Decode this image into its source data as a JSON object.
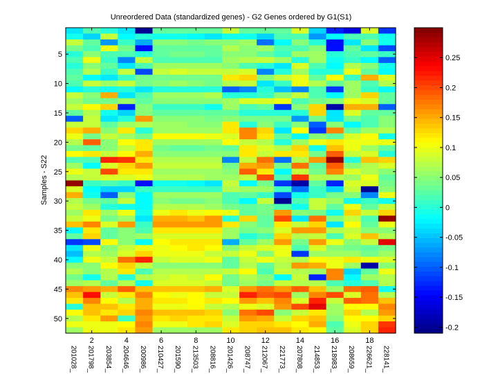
{
  "chart_data": {
    "type": "heatmap",
    "title": "Unreordered Data (standardized genes) - G2 Genes ordered by G1(S1)",
    "xlabel": "",
    "ylabel": "Samples - S22",
    "x_ticks": [
      2,
      4,
      6,
      8,
      10,
      12,
      14,
      16,
      18
    ],
    "y_ticks": [
      5,
      10,
      15,
      20,
      25,
      30,
      35,
      40,
      45,
      50
    ],
    "column_labels": [
      "201028_",
      "201798_",
      "203854_",
      "204646_",
      "200986_",
      "210427_",
      "201590_",
      "213503_",
      "208816_",
      "201426_",
      "208747_",
      "212067_",
      "221773_",
      "207808_",
      "214853_",
      "218983_",
      "208659_",
      "226621_",
      "228141_"
    ],
    "colorbar": {
      "colormap": "jet",
      "clim": [
        -0.21,
        0.3
      ],
      "ticks": [
        -0.2,
        -0.15,
        -0.1,
        -0.05,
        0,
        0.05,
        0.1,
        0.15,
        0.2,
        0.25
      ],
      "tick_labels": [
        "-0.2",
        "-0.15",
        "-0.1",
        "-0.05",
        "0",
        "0.05",
        "0.1",
        "0.15",
        "0.2",
        "0.25"
      ]
    },
    "n_rows": 52,
    "n_cols": 19,
    "values": [
      [
        -0.03,
        0.02,
        0.0,
        -0.03,
        -0.2,
        0.03,
        0.03,
        0.03,
        0.03,
        0.08,
        0.03,
        0.03,
        0.03,
        0.09,
        -0.04,
        -0.13,
        -0.16,
        0.09,
        -0.12
      ],
      [
        -0.01,
        -0.04,
        0.08,
        -0.02,
        0.0,
        -0.01,
        -0.01,
        -0.02,
        -0.03,
        -0.01,
        -0.01,
        -0.04,
        0.02,
        0.02,
        -0.07,
        -0.02,
        0.02,
        0.02,
        -0.01
      ],
      [
        0.08,
        0.03,
        -0.07,
        0.01,
        -0.06,
        0.05,
        0.05,
        0.04,
        0.05,
        0.05,
        0.06,
        -0.09,
        -0.02,
        0.05,
        0.0,
        -0.14,
        -0.03,
        0.05,
        -0.01
      ],
      [
        0.04,
        0.02,
        0.1,
        0.04,
        -0.14,
        0.03,
        0.03,
        0.03,
        0.03,
        0.07,
        0.05,
        0.06,
        0.02,
        0.02,
        0.05,
        -0.14,
        0.03,
        -0.03,
        -0.11
      ],
      [
        0.0,
        0.05,
        0.02,
        0.02,
        0.0,
        0.03,
        0.04,
        0.04,
        0.03,
        0.05,
        0.05,
        0.03,
        0.01,
        0.06,
        0.06,
        0.0,
        0.02,
        0.03,
        0.01
      ],
      [
        0.02,
        0.1,
        0.01,
        -0.08,
        0.08,
        0.02,
        0.02,
        0.02,
        0.02,
        0.06,
        0.07,
        0.08,
        0.06,
        0.0,
        0.06,
        -0.01,
        0.01,
        -0.02,
        -0.1
      ],
      [
        0.0,
        0.05,
        0.03,
        -0.03,
        0.02,
        0.06,
        0.06,
        0.06,
        0.06,
        0.05,
        0.02,
        0.0,
        -0.03,
        0.09,
        0.02,
        -0.02,
        0.07,
        0.05,
        -0.01
      ],
      [
        0.02,
        0.07,
        0.01,
        0.08,
        -0.11,
        0.08,
        0.09,
        0.08,
        0.08,
        0.08,
        0.09,
        -0.08,
        0.0,
        0.06,
        0.0,
        0.0,
        0.1,
        0.03,
        -0.02
      ],
      [
        0.03,
        -0.02,
        -0.03,
        0.01,
        0.04,
        0.04,
        0.04,
        0.04,
        0.04,
        0.12,
        0.13,
        0.05,
        0.08,
        0.1,
        0.03,
        0.11,
        0.01,
        0.15,
        0.09
      ],
      [
        0.02,
        0.08,
        0.06,
        0.08,
        0.04,
        0.05,
        0.06,
        0.05,
        0.04,
        0.07,
        0.08,
        -0.03,
        0.01,
        0.1,
        0.07,
        0.03,
        0.06,
        0.02,
        0.07
      ],
      [
        -0.02,
        0.0,
        -0.01,
        0.0,
        -0.03,
        0.0,
        0.0,
        0.0,
        0.0,
        -0.1,
        -0.08,
        0.0,
        -0.05,
        -0.08,
        0.02,
        -0.12,
        0.06,
        0.01,
        -0.02
      ],
      [
        0.08,
        0.05,
        0.15,
        -0.03,
        0.02,
        0.06,
        0.06,
        0.06,
        0.07,
        0.0,
        0.0,
        0.01,
        0.05,
        0.08,
        0.02,
        -0.02,
        0.06,
        0.13,
        0.03
      ],
      [
        0.06,
        0.04,
        0.04,
        0.06,
        0.03,
        0.05,
        0.05,
        0.05,
        0.05,
        0.06,
        0.09,
        0.09,
        0.1,
        0.02,
        0.04,
        0.05,
        0.1,
        0.09,
        0.03
      ],
      [
        0.08,
        0.11,
        0.13,
        -0.13,
        0.05,
        0.01,
        0.01,
        0.01,
        -0.01,
        0.06,
        0.02,
        0.03,
        -0.12,
        0.05,
        0.13,
        -0.19,
        0.15,
        0.15,
        -0.1
      ],
      [
        0.03,
        0.07,
        -0.01,
        -0.04,
        0.05,
        0.03,
        0.03,
        0.03,
        0.03,
        0.03,
        0.0,
        0.0,
        0.0,
        0.0,
        0.13,
        -0.03,
        0.09,
        0.03,
        0.03
      ],
      [
        -0.1,
        0.08,
        -0.03,
        0.0,
        0.16,
        0.05,
        0.05,
        0.05,
        0.04,
        0.05,
        0.04,
        0.04,
        0.04,
        -0.07,
        0.04,
        -0.03,
        0.04,
        0.02,
        0.05
      ],
      [
        0.08,
        0.08,
        0.03,
        0.06,
        0.07,
        0.06,
        0.06,
        0.05,
        0.05,
        0.12,
        0.0,
        0.05,
        0.01,
        0.05,
        -0.1,
        0.05,
        -0.02,
        0.02,
        0.05
      ],
      [
        0.13,
        0.15,
        0.05,
        0.12,
        0.0,
        0.06,
        0.06,
        0.06,
        0.06,
        0.12,
        0.17,
        0.13,
        -0.03,
        0.11,
        -0.12,
        0.17,
        0.03,
        0.06,
        0.07
      ],
      [
        0.1,
        0.04,
        0.08,
        0.06,
        0.04,
        0.11,
        0.11,
        0.11,
        0.1,
        0.09,
        0.17,
        0.12,
        0.03,
        -0.02,
        0.05,
        0.03,
        0.09,
        0.11,
        -0.01
      ],
      [
        0.07,
        0.19,
        0.05,
        0.11,
        0.12,
        0.06,
        0.06,
        0.06,
        0.06,
        0.11,
        0.08,
        0.07,
        0.0,
        0.06,
        0.1,
        0.12,
        0.1,
        0.1,
        0.1
      ],
      [
        0.04,
        0.03,
        0.05,
        0.08,
        0.12,
        0.04,
        0.03,
        0.03,
        0.04,
        0.03,
        0.12,
        0.09,
        0.07,
        0.13,
        -0.01,
        0.14,
        0.1,
        0.06,
        0.03
      ],
      [
        0.11,
        0.12,
        0.08,
        0.11,
        0.15,
        0.05,
        0.05,
        0.05,
        0.05,
        0.05,
        0.12,
        0.08,
        0.12,
        0.12,
        0.04,
        0.19,
        0.08,
        0.09,
        0.0
      ],
      [
        0.02,
        0.02,
        0.22,
        0.21,
        0.12,
        0.07,
        0.07,
        0.07,
        0.07,
        -0.08,
        0.08,
        0.18,
        -0.09,
        0.07,
        0.16,
        0.29,
        0.0,
        0.14,
        0.13
      ],
      [
        0.06,
        -0.02,
        0.09,
        0.13,
        0.16,
        0.08,
        0.08,
        0.08,
        0.08,
        0.04,
        0.15,
        0.16,
        0.04,
        0.18,
        0.03,
        0.19,
        0.05,
        0.07,
        0.09
      ],
      [
        0.1,
        0.08,
        0.2,
        0.12,
        0.12,
        0.06,
        0.06,
        0.06,
        0.06,
        0.05,
        0.19,
        0.12,
        -0.02,
        0.08,
        0.04,
        0.17,
        0.09,
        0.07,
        0.05
      ],
      [
        0.07,
        0.08,
        0.09,
        0.09,
        0.1,
        0.07,
        0.07,
        0.07,
        0.06,
        0.06,
        0.08,
        0.2,
        0.02,
        0.21,
        0.07,
        0.07,
        0.06,
        0.1,
        0.03
      ],
      [
        0.29,
        0.01,
        0.02,
        0.01,
        -0.14,
        -0.01,
        -0.01,
        -0.02,
        -0.03,
        0.08,
        -0.02,
        0.04,
        -0.12,
        -0.19,
        0.03,
        -0.13,
        0.09,
        0.09,
        0.04
      ],
      [
        0.09,
        -0.02,
        -0.04,
        -0.04,
        0.01,
        0.01,
        0.01,
        0.01,
        0.01,
        0.07,
        0.06,
        0.06,
        0.01,
        -0.09,
        0.01,
        -0.04,
        0.08,
        -0.2,
        0.05
      ],
      [
        0.15,
        -0.01,
        -0.1,
        0.05,
        -0.02,
        0.06,
        0.06,
        0.06,
        0.06,
        0.02,
        0.03,
        0.01,
        -0.11,
        -0.01,
        0.01,
        0.04,
        0.05,
        -0.08,
        0.1
      ],
      [
        0.07,
        0.04,
        0.03,
        0.08,
        -0.02,
        0.05,
        0.04,
        0.04,
        0.05,
        0.02,
        -0.02,
        0.08,
        -0.2,
        0.02,
        0.08,
        0.06,
        -0.01,
        0.01,
        -0.01
      ],
      [
        0.08,
        0.06,
        0.0,
        -0.01,
        -0.02,
        0.07,
        0.07,
        0.07,
        0.06,
        0.04,
        0.03,
        0.04,
        0.02,
        -0.01,
        0.08,
        0.03,
        0.1,
        0.03,
        0.08
      ],
      [
        0.06,
        0.12,
        0.06,
        0.1,
        -0.01,
        0.1,
        0.12,
        0.1,
        0.11,
        0.1,
        0.03,
        0.04,
        0.16,
        0.05,
        0.04,
        -0.01,
        0.13,
        0.08,
        0.13
      ],
      [
        0.08,
        0.1,
        0.04,
        0.06,
        -0.03,
        0.15,
        0.15,
        0.14,
        0.16,
        0.0,
        0.13,
        0.03,
        0.2,
        -0.03,
        0.18,
        0.05,
        0.08,
        0.02,
        0.29
      ],
      [
        0.14,
        0.17,
        0.09,
        0.16,
        0.01,
        0.16,
        0.16,
        0.16,
        0.16,
        0.12,
        0.05,
        0.03,
        0.12,
        0.08,
        0.13,
        -0.03,
        0.11,
        0.03,
        0.1
      ],
      [
        -0.02,
        0.12,
        0.03,
        0.05,
        0.02,
        0.12,
        0.12,
        0.12,
        0.12,
        0.06,
        0.04,
        0.05,
        0.09,
        0.16,
        0.16,
        0.07,
        0.08,
        0.05,
        0.05
      ],
      [
        0.03,
        0.13,
        0.03,
        0.05,
        0.06,
        0.09,
        0.09,
        0.09,
        0.09,
        0.06,
        0.0,
        0.02,
        0.13,
        0.07,
        0.08,
        0.02,
        0.09,
        0.14,
        0.07
      ],
      [
        -0.12,
        -0.11,
        0.11,
        0.05,
        -0.02,
        0.11,
        0.12,
        0.12,
        0.12,
        -0.06,
        0.03,
        0.06,
        0.16,
        0.04,
        0.16,
        0.1,
        0.05,
        0.08,
        0.25
      ],
      [
        -0.03,
        0.1,
        0.05,
        0.08,
        0.1,
        0.1,
        0.11,
        0.12,
        0.11,
        0.05,
        0.08,
        0.09,
        0.1,
        0.02,
        0.09,
        0.05,
        0.04,
        0.03,
        0.04
      ],
      [
        -0.05,
        0.07,
        0.06,
        0.09,
        0.13,
        0.1,
        0.1,
        0.1,
        0.08,
        0.08,
        0.1,
        0.05,
        0.1,
        -0.12,
        0.06,
        0.06,
        0.06,
        0.04,
        0.06
      ],
      [
        -0.02,
        0.1,
        0.08,
        0.18,
        0.22,
        0.08,
        0.09,
        0.09,
        0.1,
        0.03,
        0.08,
        0.1,
        0.08,
        0.07,
        0.11,
        0.1,
        0.12,
        0.1,
        0.09
      ],
      [
        0.05,
        0.05,
        0.11,
        0.13,
        0.08,
        0.05,
        0.05,
        0.05,
        0.05,
        0.03,
        0.07,
        0.03,
        0.07,
        0.16,
        0.15,
        0.1,
        0.06,
        -0.19,
        0.05
      ],
      [
        0.07,
        0.05,
        0.07,
        0.12,
        0.02,
        0.07,
        0.07,
        0.07,
        0.07,
        0.08,
        0.11,
        0.02,
        0.08,
        0.07,
        0.06,
        0.17,
        -0.04,
        0.03,
        0.1
      ],
      [
        0.04,
        -0.01,
        0.07,
        0.0,
        0.07,
        0.08,
        0.09,
        0.08,
        0.11,
        0.04,
        0.07,
        0.05,
        -0.02,
        0.08,
        -0.13,
        0.17,
        -0.02,
        0.06,
        0.07
      ],
      [
        0.06,
        0.07,
        0.03,
        0.07,
        -0.01,
        0.09,
        0.09,
        0.09,
        0.08,
        0.04,
        0.06,
        0.04,
        0.08,
        0.07,
        0.07,
        0.02,
        0.0,
        0.02,
        0.07
      ],
      [
        0.17,
        0.16,
        0.15,
        0.19,
        0.14,
        0.14,
        0.14,
        0.14,
        0.15,
        0.09,
        0.16,
        0.18,
        0.16,
        0.19,
        0.14,
        0.06,
        0.18,
        0.19,
        -0.01
      ],
      [
        0.14,
        0.23,
        0.08,
        0.12,
        0.17,
        0.11,
        0.1,
        0.11,
        0.08,
        0.08,
        0.22,
        0.19,
        0.2,
        0.06,
        0.17,
        0.2,
        0.09,
        0.18,
        0.07
      ],
      [
        0.12,
        0.17,
        0.11,
        0.07,
        0.15,
        0.12,
        0.12,
        0.11,
        0.12,
        0.11,
        0.16,
        0.14,
        0.17,
        0.09,
        0.22,
        0.08,
        0.19,
        0.18,
        0.14
      ],
      [
        0.0,
        0.14,
        0.14,
        0.12,
        0.15,
        0.1,
        0.1,
        0.11,
        0.08,
        0.07,
        0.1,
        0.09,
        0.16,
        0.2,
        0.25,
        0.06,
        0.11,
        0.11,
        0.17
      ],
      [
        0.11,
        0.14,
        0.12,
        0.13,
        0.17,
        0.14,
        0.14,
        0.14,
        0.13,
        0.05,
        0.18,
        0.2,
        0.05,
        0.08,
        0.12,
        0.06,
        0.13,
        0.07,
        0.16
      ],
      [
        0.07,
        0.12,
        0.16,
        0.01,
        0.16,
        0.12,
        0.13,
        0.12,
        0.12,
        0.08,
        0.16,
        0.15,
        0.08,
        0.13,
        0.14,
        0.05,
        0.11,
        0.11,
        0.13
      ],
      [
        0.1,
        0.1,
        0.1,
        0.11,
        0.17,
        0.1,
        0.1,
        0.12,
        0.13,
        0.09,
        0.13,
        0.13,
        0.12,
        0.11,
        0.15,
        0.02,
        0.1,
        0.13,
        0.21
      ],
      [
        0.06,
        0.1,
        0.1,
        0.12,
        0.16,
        0.06,
        0.06,
        0.06,
        0.06,
        0.12,
        0.13,
        0.14,
        0.14,
        0.12,
        0.11,
        0.03,
        0.09,
        0.13,
        0.22
      ]
    ]
  }
}
